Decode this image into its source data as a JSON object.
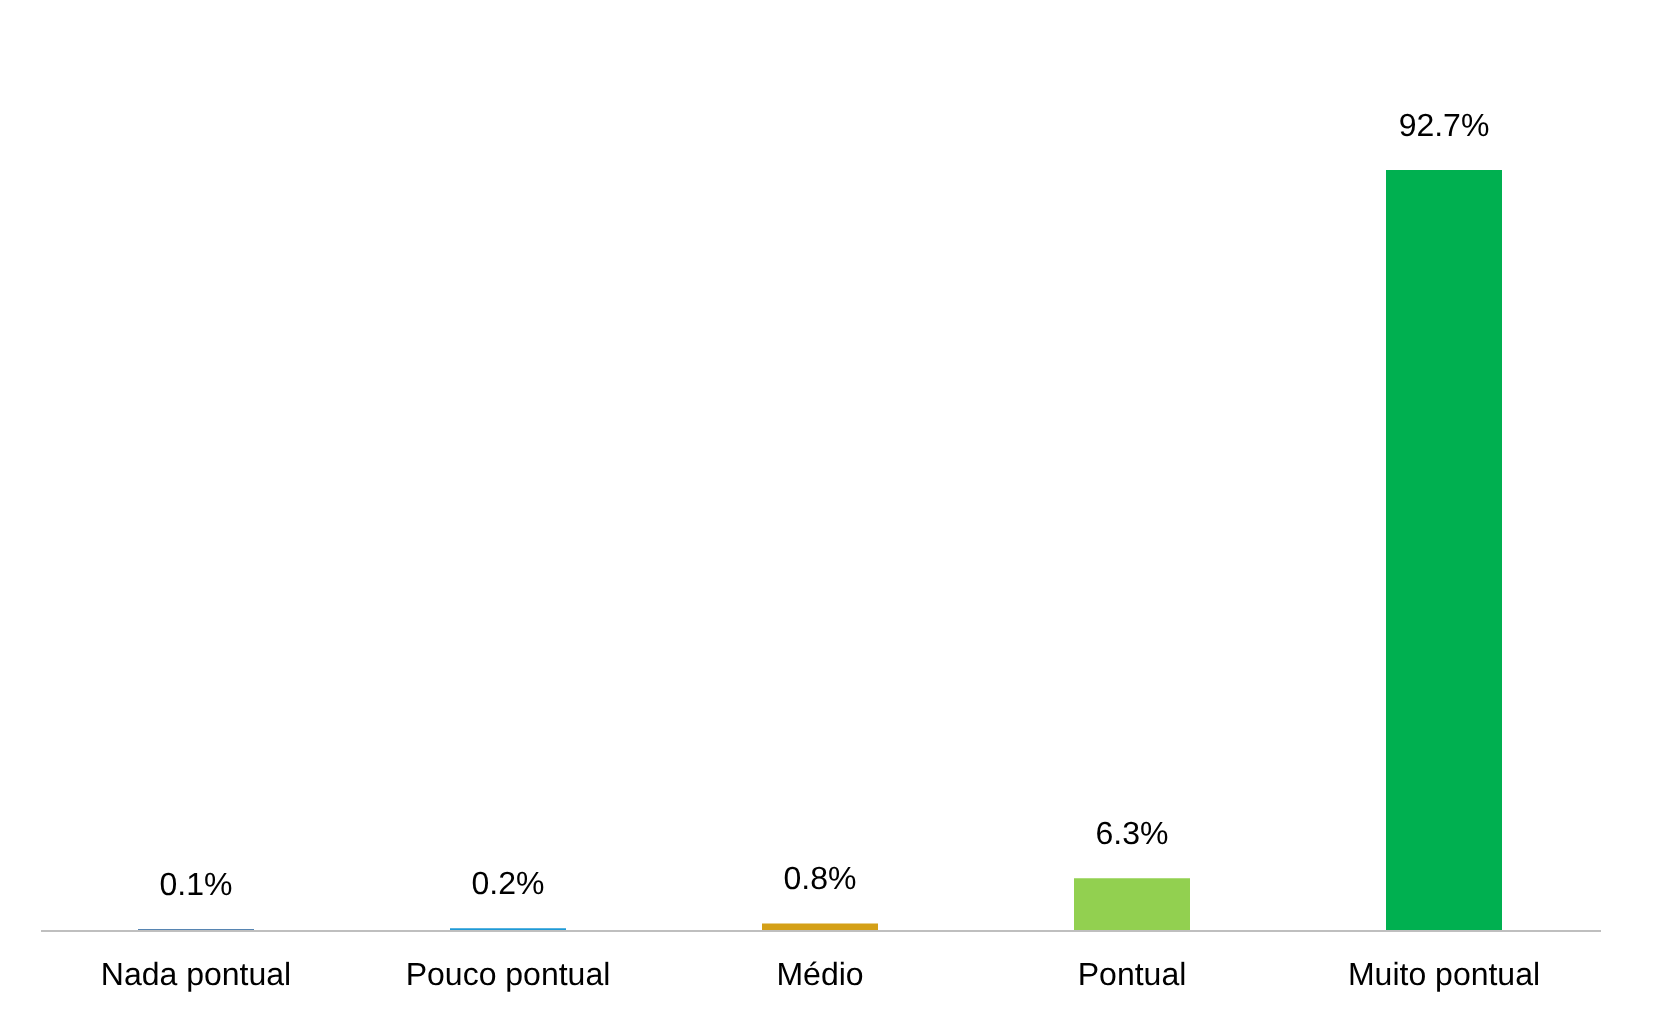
{
  "chart_data": {
    "type": "bar",
    "categories": [
      "Nada pontual",
      "Pouco pontual",
      "Médio",
      "Pontual",
      "Muito pontual"
    ],
    "values": [
      0.1,
      0.2,
      0.8,
      6.3,
      92.7
    ],
    "colors": [
      "#1f5c99",
      "#1f9ad6",
      "#d4a017",
      "#92d050",
      "#00b050"
    ],
    "value_labels": [
      "0.1%",
      "0.2%",
      "0.8%",
      "6.3%",
      "92.7%"
    ],
    "grid": false
  }
}
